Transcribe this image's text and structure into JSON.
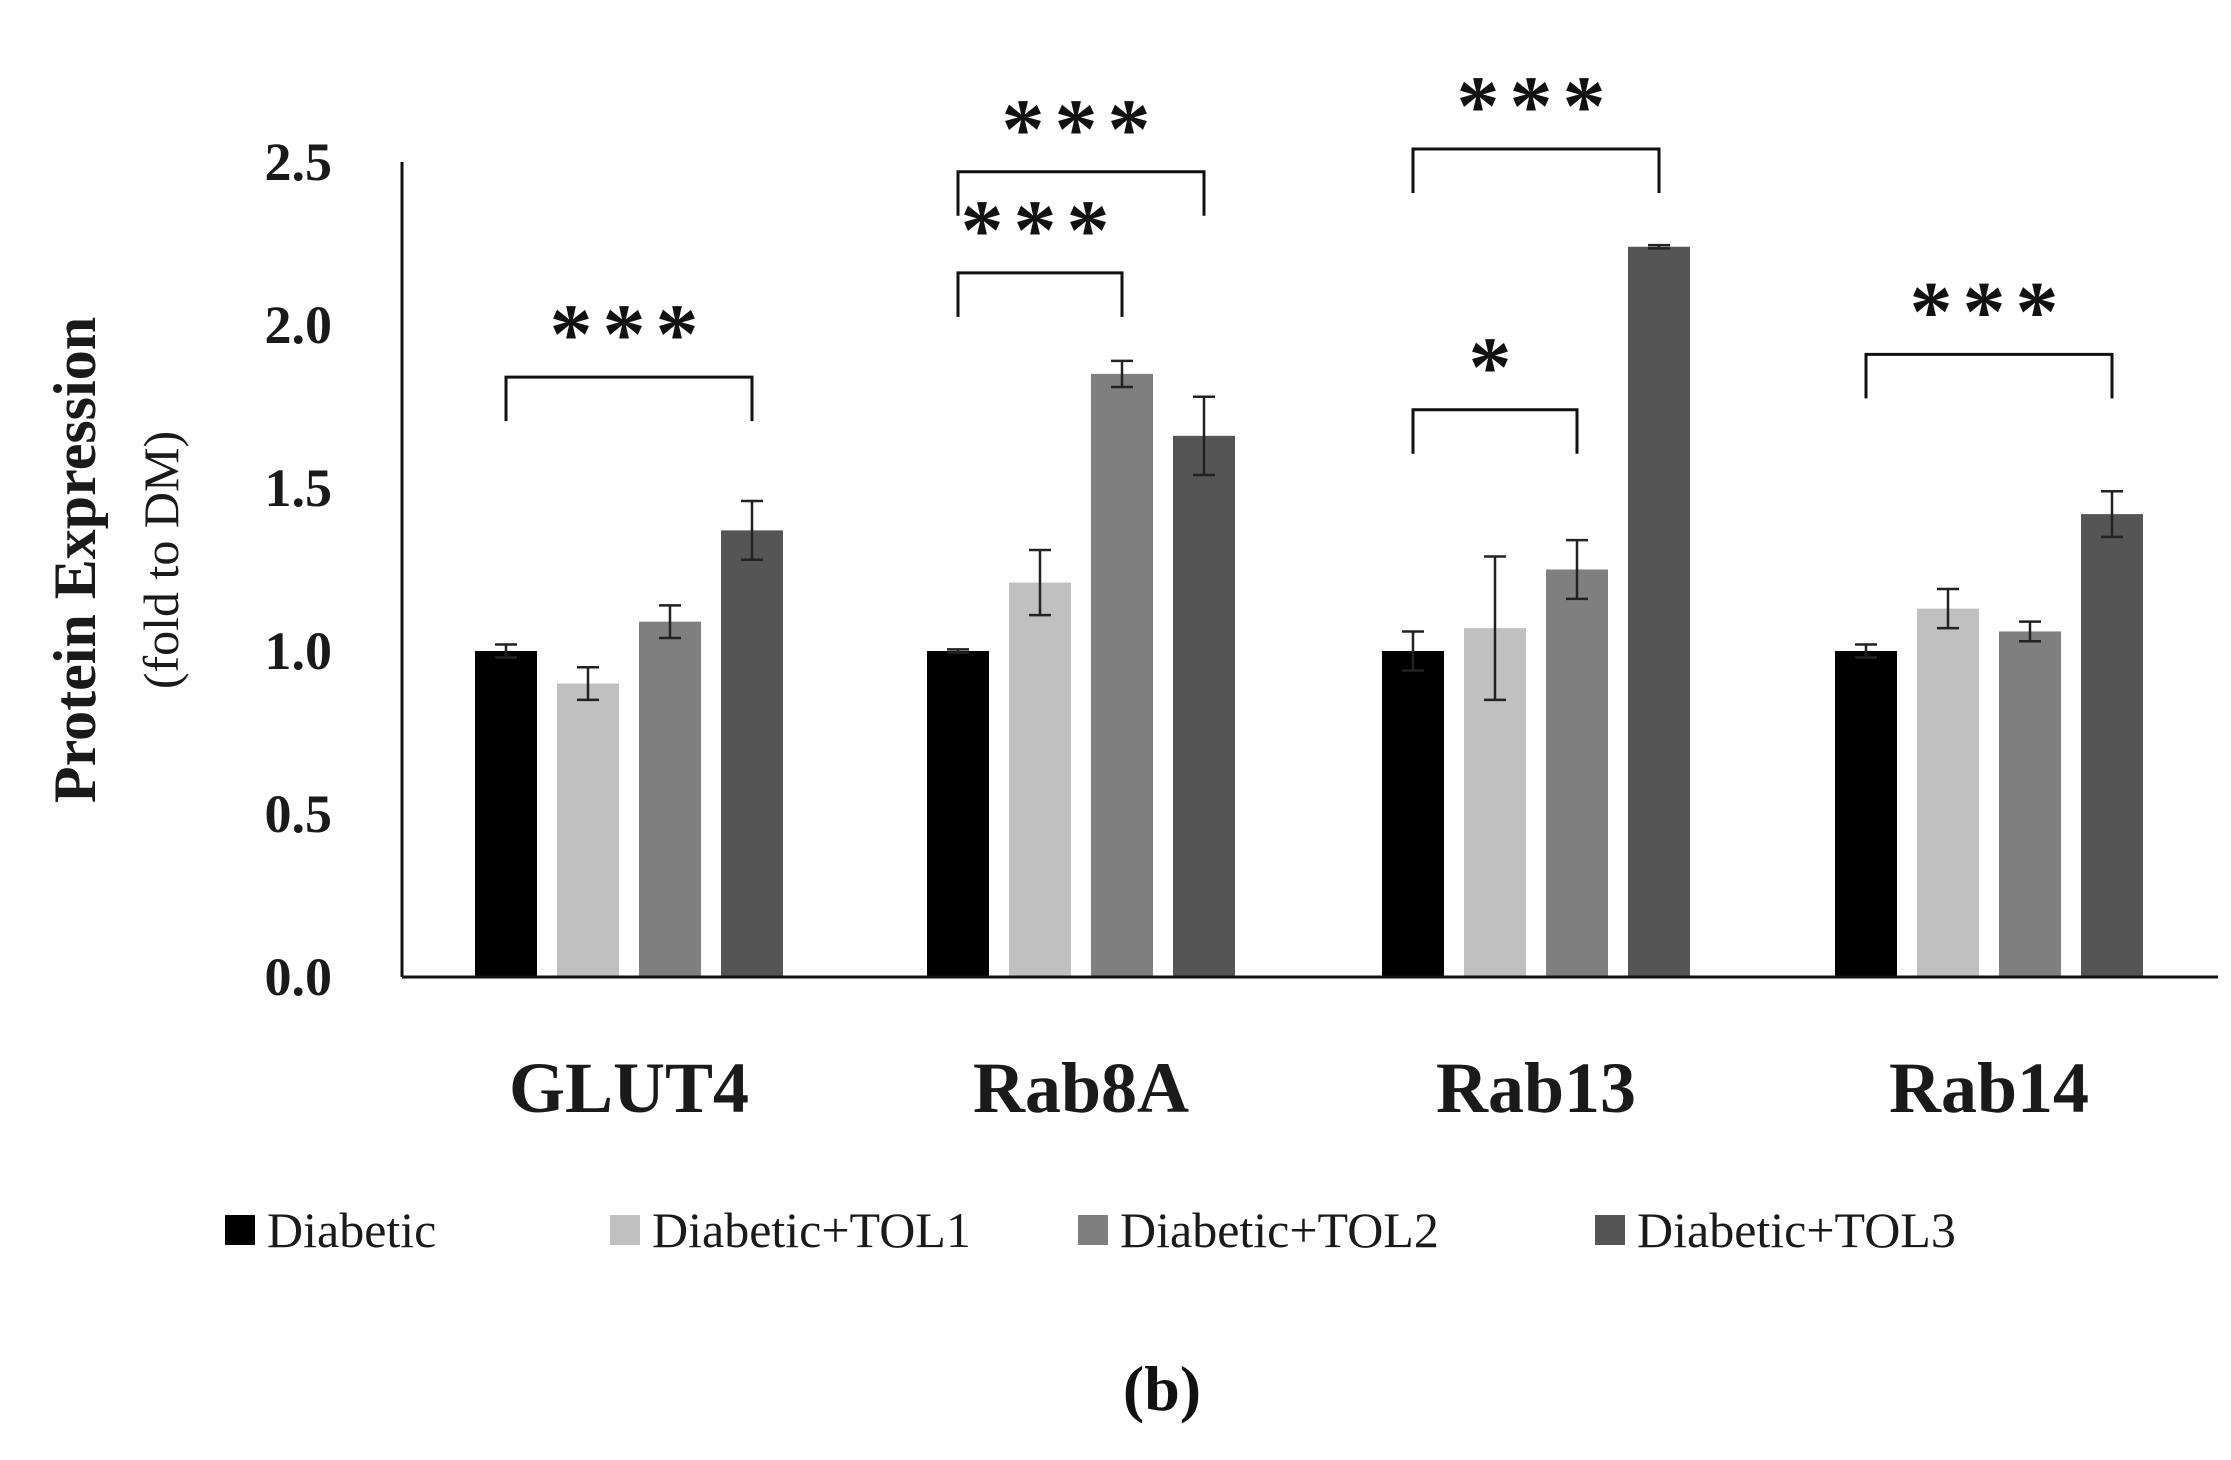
{
  "chart_data": {
    "type": "bar",
    "title": "",
    "panel_label": "(b)",
    "ylabel": "Protein Expression",
    "ylabel_sub": "(fold  to DM)",
    "xlabel": "",
    "ylim": [
      0,
      2.5
    ],
    "yticks": [
      "0.0",
      "0.5",
      "1.0",
      "1.5",
      "2.0",
      "2.5"
    ],
    "categories": [
      "GLUT4",
      "Rab8A",
      "Rab13",
      "Rab14"
    ],
    "legend_position": "bottom",
    "series": [
      {
        "name": "Diabetic",
        "color": "#000000",
        "values": [
          1.0,
          1.0,
          1.0,
          1.0
        ],
        "errors": [
          0.02,
          0.005,
          0.06,
          0.02
        ]
      },
      {
        "name": "Diabetic+TOL1",
        "color": "#c0c0c0",
        "values": [
          0.9,
          1.21,
          1.07,
          1.13
        ],
        "errors": [
          0.05,
          0.1,
          0.22,
          0.06
        ]
      },
      {
        "name": "Diabetic+TOL2",
        "color": "#7f7f7f",
        "values": [
          1.09,
          1.85,
          1.25,
          1.06
        ],
        "errors": [
          0.05,
          0.04,
          0.09,
          0.03
        ]
      },
      {
        "name": "Diabetic+TOL3",
        "color": "#555555",
        "values": [
          1.37,
          1.66,
          2.24,
          1.42
        ],
        "errors": [
          0.09,
          0.12,
          0.005,
          0.07
        ]
      }
    ],
    "significance": [
      {
        "category": 0,
        "from": 0,
        "to": 3,
        "label": "***",
        "bracket_y": 1.84
      },
      {
        "category": 1,
        "from": 0,
        "to": 2,
        "label": "***",
        "bracket_y": 2.16
      },
      {
        "category": 1,
        "from": 0,
        "to": 3,
        "label": "***",
        "bracket_y": 2.47
      },
      {
        "category": 2,
        "from": 0,
        "to": 2,
        "label": "*",
        "bracket_y": 1.74
      },
      {
        "category": 2,
        "from": 0,
        "to": 3,
        "label": "***",
        "bracket_y": 2.54
      },
      {
        "category": 3,
        "from": 0,
        "to": 3,
        "label": "***",
        "bracket_y": 1.91
      }
    ]
  }
}
